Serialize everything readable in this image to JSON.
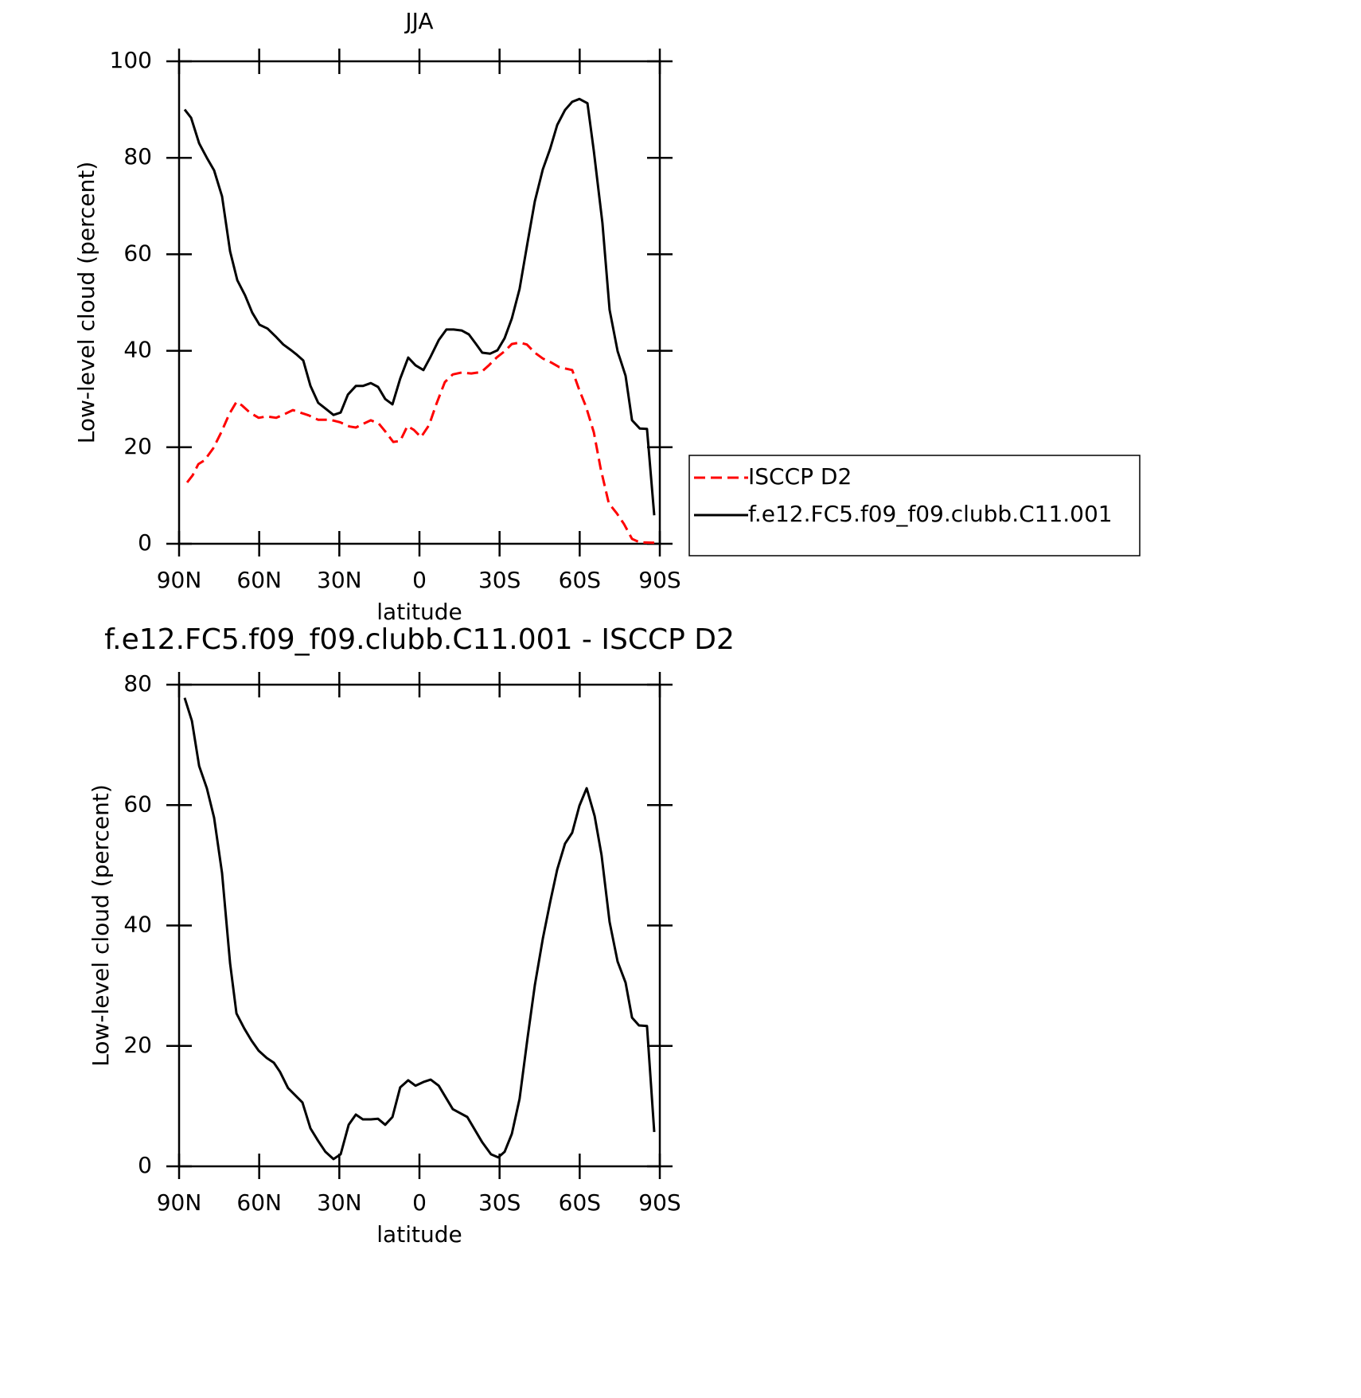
{
  "chart_data": [
    {
      "type": "line",
      "title": "JJA",
      "xlabel": "latitude",
      "ylabel": "Low-level cloud (percent)",
      "xlim": [
        90,
        -90
      ],
      "xticks": [
        {
          "value": 90,
          "label": "90N"
        },
        {
          "value": 60,
          "label": "60N"
        },
        {
          "value": 30,
          "label": "30N"
        },
        0,
        {
          "value": -30,
          "label": "30S"
        },
        {
          "value": -60,
          "label": "60S"
        },
        {
          "value": -90,
          "label": "90S"
        }
      ],
      "ylim": [
        0,
        100
      ],
      "yticks": [
        0,
        20,
        40,
        60,
        80,
        100
      ],
      "legend": "right",
      "series": [
        {
          "name": "ISCCP D2",
          "color": "#ff0000",
          "dash": true,
          "x": [
            87.0,
            84.9,
            82.8,
            80.5,
            77.2,
            74.2,
            71.2,
            68.5,
            66.5,
            63.5,
            60.2,
            57.2,
            53.6,
            50.4,
            47.4,
            44.1,
            41.4,
            37.9,
            33.4,
            29.8,
            26.2,
            23.8,
            20.9,
            18.2,
            15.2,
            12.8,
            9.8,
            7.2,
            4.5,
            2.1,
            -0.6,
            -3.6,
            -6.3,
            -9.5,
            -12.5,
            -15.8,
            -19.4,
            -23.2,
            -26.2,
            -28.9,
            -31.9,
            -34.6,
            -37.5,
            -40.2,
            -43.2,
            -46.2,
            -49.2,
            -52.4,
            -57.2,
            -59.9,
            -62.3,
            -65.3,
            -67.9,
            -70.9,
            -73.9,
            -76.6,
            -79.6,
            -82.5,
            -87.9
          ],
          "values": [
            12.7,
            14.2,
            16.5,
            17.3,
            19.8,
            23.1,
            26.9,
            29.4,
            28.7,
            27.2,
            26.1,
            26.4,
            26.1,
            26.9,
            27.7,
            27.1,
            26.6,
            25.7,
            25.7,
            25.2,
            24.3,
            24.1,
            24.9,
            25.6,
            24.9,
            23.3,
            21.1,
            21.3,
            24.4,
            23.6,
            22.1,
            24.6,
            28.9,
            33.5,
            35.1,
            35.5,
            35.3,
            35.6,
            37.1,
            38.6,
            39.9,
            41.4,
            41.7,
            41.3,
            39.6,
            38.4,
            37.6,
            36.6,
            36.0,
            31.8,
            28.5,
            23.1,
            15.5,
            8.4,
            6.3,
            4.1,
            1.0,
            0.3,
            0.2
          ]
        },
        {
          "name": "f.e12.FC5.f09_f09.clubb.C11.001",
          "color": "#000000",
          "dash": false,
          "x": [
            87.9,
            85.5,
            82.5,
            79.6,
            76.9,
            73.9,
            70.9,
            68.2,
            65.3,
            62.6,
            59.9,
            56.9,
            53.9,
            51.0,
            48.0,
            46.2,
            43.5,
            40.8,
            37.9,
            34.9,
            32.2,
            29.5,
            26.8,
            23.8,
            21.2,
            18.2,
            15.5,
            12.8,
            10.1,
            7.2,
            4.2,
            1.5,
            -1.5,
            -4.2,
            -7.2,
            -10.1,
            -12.8,
            -15.8,
            -18.5,
            -21.2,
            -23.5,
            -26.5,
            -29.2,
            -31.9,
            -34.6,
            -37.5,
            -40.5,
            -43.2,
            -46.2,
            -48.9,
            -51.6,
            -54.5,
            -57.2,
            -59.9,
            -62.9,
            -65.3,
            -68.5,
            -71.2,
            -74.2,
            -77.2,
            -79.6,
            -82.5,
            -85.2,
            -87.9
          ],
          "values": [
            90.0,
            88.3,
            83.0,
            80.0,
            77.4,
            72.0,
            60.6,
            54.6,
            51.5,
            47.9,
            45.4,
            44.6,
            43.0,
            41.3,
            40.1,
            39.3,
            38.0,
            32.7,
            29.2,
            27.9,
            26.7,
            27.2,
            30.9,
            32.7,
            32.7,
            33.3,
            32.5,
            30.0,
            28.9,
            34.2,
            38.6,
            37.0,
            36.0,
            38.8,
            42.2,
            44.4,
            44.4,
            44.2,
            43.4,
            41.4,
            39.6,
            39.4,
            40.1,
            42.6,
            46.7,
            52.8,
            62.5,
            71.0,
            77.6,
            81.8,
            86.8,
            89.9,
            91.6,
            92.2,
            91.3,
            81.4,
            66.5,
            48.5,
            39.9,
            34.8,
            25.6,
            23.9,
            23.8,
            5.9
          ]
        }
      ]
    },
    {
      "type": "line",
      "title": "f.e12.FC5.f09_f09.clubb.C11.001 - ISCCP D2",
      "xlabel": "latitude",
      "ylabel": "Low-level cloud (percent)",
      "xlim": [
        90,
        -90
      ],
      "xticks": [
        {
          "value": 90,
          "label": "90N"
        },
        {
          "value": 60,
          "label": "60N"
        },
        {
          "value": 30,
          "label": "30N"
        },
        0,
        {
          "value": -30,
          "label": "30S"
        },
        {
          "value": -60,
          "label": "60S"
        },
        {
          "value": -90,
          "label": "90S"
        }
      ],
      "ylim": [
        0,
        80
      ],
      "yticks": [
        0,
        20,
        40,
        60,
        80
      ],
      "series": [
        {
          "color": "#000000",
          "dash": false,
          "x": [
            87.9,
            85.2,
            82.5,
            79.6,
            76.9,
            73.9,
            70.9,
            68.5,
            65.6,
            62.9,
            60.2,
            57.2,
            54.5,
            52.2,
            49.2,
            46.5,
            43.8,
            40.8,
            37.9,
            35.2,
            32.2,
            29.5,
            26.5,
            23.8,
            21.2,
            18.2,
            15.5,
            12.8,
            10.1,
            7.2,
            4.2,
            1.5,
            -1.5,
            -4.2,
            -7.2,
            -12.5,
            -17.9,
            -23.5,
            -26.8,
            -29.5,
            -31.9,
            -34.6,
            -37.5,
            -40.5,
            -43.2,
            -46.2,
            -48.9,
            -51.6,
            -54.5,
            -57.2,
            -59.9,
            -62.6,
            -65.6,
            -68.2,
            -71.2,
            -74.2,
            -77.2,
            -79.6,
            -82.2,
            -85.2,
            -87.9
          ],
          "values": [
            77.8,
            74.0,
            66.5,
            62.8,
            57.9,
            48.7,
            33.7,
            25.4,
            22.9,
            20.9,
            19.2,
            18.0,
            17.2,
            15.7,
            13.0,
            11.8,
            10.6,
            6.3,
            4.2,
            2.4,
            1.2,
            2.0,
            6.9,
            8.6,
            7.8,
            7.8,
            7.9,
            6.9,
            8.2,
            13.1,
            14.3,
            13.4,
            14.0,
            14.4,
            13.4,
            9.5,
            8.2,
            4.0,
            2.0,
            1.5,
            2.4,
            5.4,
            11.2,
            21.4,
            30.1,
            37.8,
            43.8,
            49.3,
            53.6,
            55.4,
            59.9,
            62.8,
            58.2,
            51.7,
            40.6,
            34.0,
            30.5,
            24.7,
            23.4,
            23.3,
            5.7
          ]
        }
      ]
    }
  ]
}
